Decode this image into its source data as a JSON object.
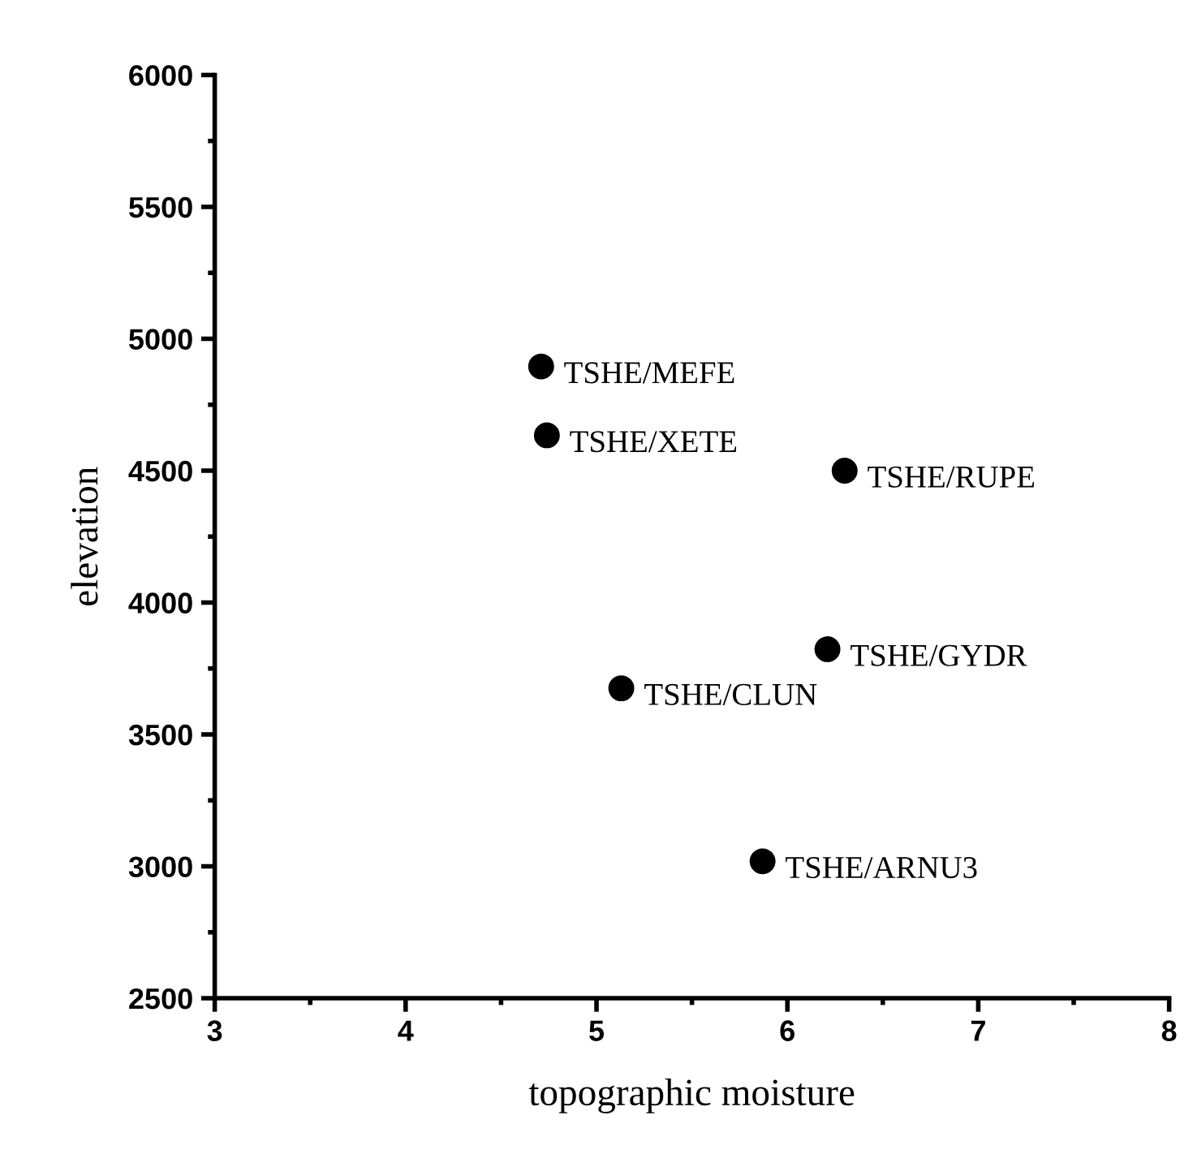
{
  "chart_data": {
    "type": "scatter",
    "xlabel": "topographic moisture",
    "ylabel": "elevation",
    "x": [
      4.71,
      4.74,
      6.3,
      6.21,
      5.13,
      5.87
    ],
    "series": [
      {
        "color": "#000000",
        "values": [
          4895,
          4634,
          4500,
          3823,
          3675,
          3019
        ]
      }
    ],
    "marker": "circle",
    "grid": false,
    "legend": false,
    "annotations": [
      {
        "text": "TSHE/MEFE",
        "x": 4.71,
        "y": 4895
      },
      {
        "text": "TSHE/XETE",
        "x": 4.74,
        "y": 4634
      },
      {
        "text": "TSHE/RUPE",
        "x": 6.3,
        "y": 4500
      },
      {
        "text": "TSHE/GYDR",
        "x": 6.21,
        "y": 3823
      },
      {
        "text": "TSHE/CLUN",
        "x": 5.13,
        "y": 3675
      },
      {
        "text": "TSHE/ARNU3",
        "x": 5.87,
        "y": 3019
      }
    ],
    "xlim": [
      3,
      8
    ],
    "xticks": [
      3,
      {
        "value": 3.5,
        "label": null
      },
      4,
      {
        "value": 4.5,
        "label": null
      },
      5,
      {
        "value": 5.5,
        "label": null
      },
      6,
      {
        "value": 6.5,
        "label": null
      },
      7,
      {
        "value": 7.5,
        "label": null
      },
      8
    ],
    "ylim": [
      2500,
      6000
    ],
    "yticks": [
      2500,
      {
        "value": 2750,
        "label": null
      },
      3000,
      {
        "value": 3250,
        "label": null
      },
      3500,
      {
        "value": 3750,
        "label": null
      },
      4000,
      {
        "value": 4250,
        "label": null
      },
      4500,
      {
        "value": 4750,
        "label": null
      },
      5000,
      {
        "value": 5250,
        "label": null
      },
      5500,
      {
        "value": 5750,
        "label": null
      },
      6000
    ]
  }
}
